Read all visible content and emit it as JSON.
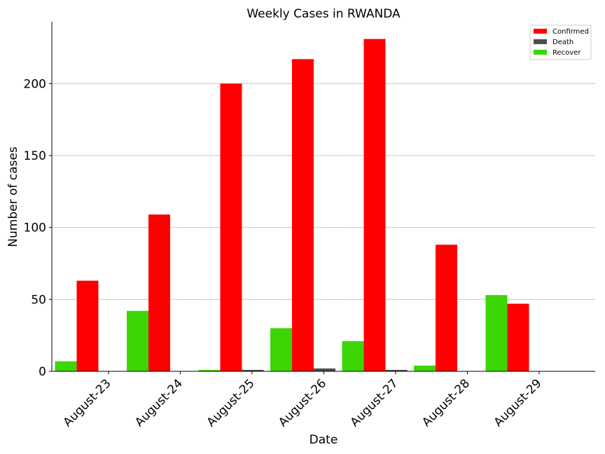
{
  "chart_data": {
    "type": "bar",
    "title": "Weekly Cases in RWANDA",
    "xlabel": "Date",
    "ylabel": "Number of cases",
    "categories": [
      "August-23",
      "August-24",
      "August-25",
      "August-26",
      "August-27",
      "August-28",
      "August-29"
    ],
    "series": [
      {
        "name": "Recover",
        "color": "#3cd606",
        "values": [
          7,
          42,
          1,
          30,
          21,
          4,
          53
        ]
      },
      {
        "name": "Confirmed",
        "color": "#ff0000",
        "values": [
          63,
          109,
          200,
          217,
          231,
          88,
          47
        ]
      },
      {
        "name": "Death",
        "color": "#4d4d4d",
        "values": [
          0,
          0,
          1,
          2,
          1,
          0,
          0
        ]
      }
    ],
    "legend_order": [
      "Confirmed",
      "Death",
      "Recover"
    ],
    "legend_position": "top-right",
    "ylim": [
      0,
      243
    ],
    "yticks": [
      0,
      50,
      100,
      150,
      200
    ],
    "grid": "y"
  }
}
